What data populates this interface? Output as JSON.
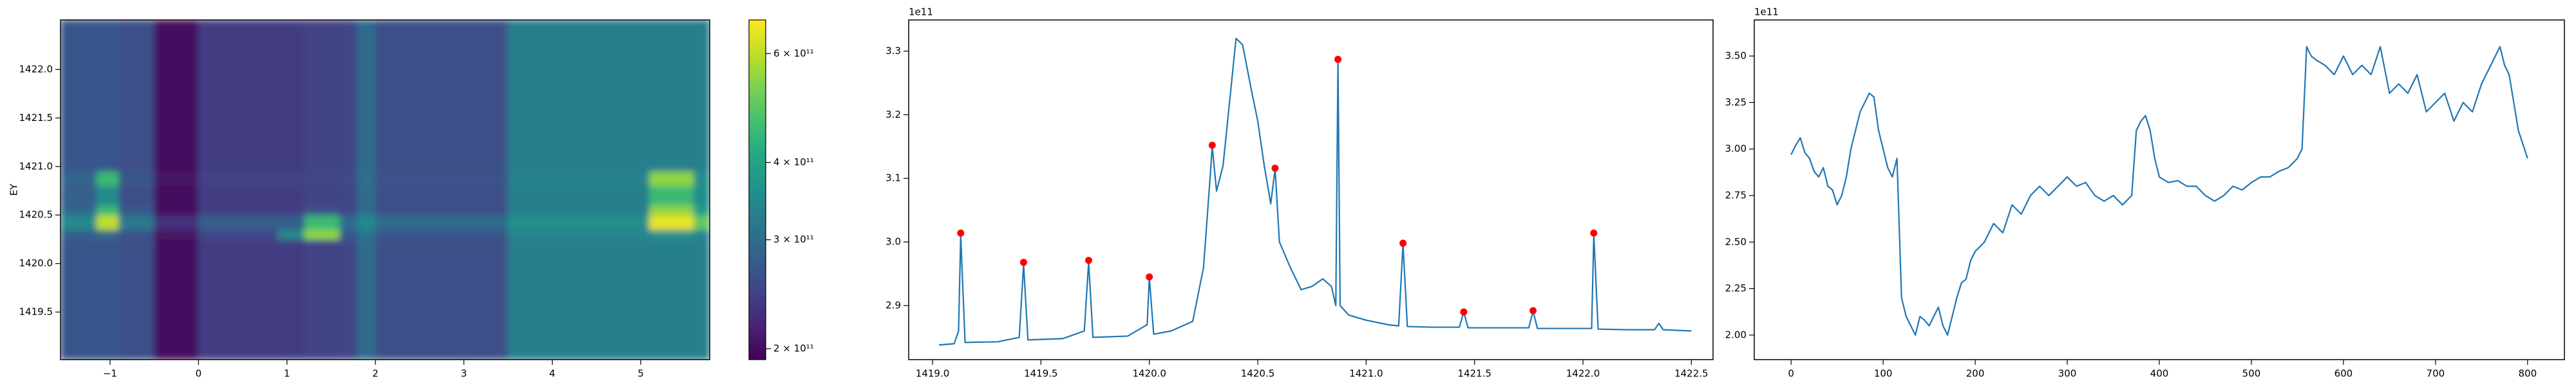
{
  "chart_data": [
    {
      "type": "heatmap",
      "ylabel": "EY",
      "cmap": "viridis",
      "colorbar_log": true,
      "xlim": [
        -1.56,
        5.78
      ],
      "ylim": [
        1419.01,
        1422.51
      ],
      "xticks": [
        {
          "value": -1,
          "label": "−1"
        },
        0,
        1,
        2,
        3,
        4,
        5
      ],
      "yticks": [
        1419.5,
        {
          "value": 1420.0,
          "label": "1420.0"
        },
        1420.5,
        {
          "value": 1421.0,
          "label": "1421.0"
        },
        1421.5,
        {
          "value": 1422.0,
          "label": "1422.0"
        }
      ],
      "x_edges": [
        -1.56,
        -1.15,
        -0.9,
        -0.5,
        0,
        0.9,
        1.2,
        1.6,
        1.8,
        2.0,
        3.5,
        5.1,
        5.6,
        5.78
      ],
      "y_edges": [
        1419.01,
        1420.25,
        1420.35,
        1420.5,
        1420.6,
        1420.8,
        1420.95,
        1422.51
      ],
      "z": [
        [
          270000000000.0,
          270000000000.0,
          260000000000.0,
          200000000000.0,
          240000000000.0,
          240000000000.0,
          245000000000.0,
          250000000000.0,
          300000000000.0,
          260000000000.0,
          330000000000.0,
          330000000000.0,
          330000000000.0
        ],
        [
          280000000000.0,
          290000000000.0,
          265000000000.0,
          205000000000.0,
          250000000000.0,
          350000000000.0,
          550000000000.0,
          270000000000.0,
          310000000000.0,
          270000000000.0,
          340000000000.0,
          360000000000.0,
          340000000000.0
        ],
        [
          350000000000.0,
          600000000000.0,
          320000000000.0,
          230000000000.0,
          280000000000.0,
          280000000000.0,
          450000000000.0,
          300000000000.0,
          350000000000.0,
          300000000000.0,
          360000000000.0,
          650000000000.0,
          500000000000.0
        ],
        [
          290000000000.0,
          450000000000.0,
          270000000000.0,
          200000000000.0,
          240000000000.0,
          240000000000.0,
          260000000000.0,
          250000000000.0,
          300000000000.0,
          260000000000.0,
          330000000000.0,
          550000000000.0,
          380000000000.0
        ],
        [
          280000000000.0,
          350000000000.0,
          260000000000.0,
          200000000000.0,
          240000000000.0,
          240000000000.0,
          245000000000.0,
          250000000000.0,
          300000000000.0,
          260000000000.0,
          330000000000.0,
          450000000000.0,
          350000000000.0
        ],
        [
          290000000000.0,
          450000000000.0,
          270000000000.0,
          205000000000.0,
          245000000000.0,
          245000000000.0,
          250000000000.0,
          255000000000.0,
          305000000000.0,
          265000000000.0,
          335000000000.0,
          550000000000.0,
          360000000000.0
        ],
        [
          270000000000.0,
          270000000000.0,
          260000000000.0,
          200000000000.0,
          240000000000.0,
          240000000000.0,
          245000000000.0,
          250000000000.0,
          300000000000.0,
          260000000000.0,
          330000000000.0,
          330000000000.0,
          330000000000.0
        ]
      ],
      "clim": [
        192000000000.0,
        680000000000.0
      ],
      "colorbar_ticks": [
        {
          "value": 200000000000.0,
          "label": "2 × 10¹¹"
        },
        {
          "value": 300000000000.0,
          "label": "3 × 10¹¹"
        },
        {
          "value": 400000000000.0,
          "label": "4 × 10¹¹"
        },
        {
          "value": 600000000000.0,
          "label": "6 × 10¹¹"
        }
      ]
    },
    {
      "type": "line",
      "offset_text": "1e11",
      "color": "#1f77b4",
      "xlim": [
        1418.89,
        1422.6
      ],
      "ylim": [
        2.815,
        3.349
      ],
      "xticks": [
        {
          "value": 1419.0,
          "label": "1419.0"
        },
        {
          "value": 1419.5,
          "label": "1419.5"
        },
        {
          "value": 1420.0,
          "label": "1420.0"
        },
        {
          "value": 1420.5,
          "label": "1420.5"
        },
        {
          "value": 1421.0,
          "label": "1421.0"
        },
        {
          "value": 1421.5,
          "label": "1421.5"
        },
        {
          "value": 1422.0,
          "label": "1422.0"
        },
        {
          "value": 1422.5,
          "label": "1422.5"
        }
      ],
      "yticks": [
        2.9,
        {
          "value": 3.0,
          "label": "3.0"
        },
        3.1,
        3.2,
        3.3
      ],
      "x": [
        1419.03,
        1419.1,
        1419.12,
        1419.13,
        1419.15,
        1419.3,
        1419.4,
        1419.42,
        1419.44,
        1419.6,
        1419.7,
        1419.72,
        1419.74,
        1419.9,
        1419.99,
        1420.0,
        1420.02,
        1420.1,
        1420.2,
        1420.25,
        1420.28,
        1420.29,
        1420.31,
        1420.34,
        1420.37,
        1420.4,
        1420.43,
        1420.47,
        1420.5,
        1420.53,
        1420.56,
        1420.58,
        1420.6,
        1420.65,
        1420.7,
        1420.75,
        1420.8,
        1420.84,
        1420.86,
        1420.87,
        1420.88,
        1420.92,
        1421.0,
        1421.1,
        1421.15,
        1421.17,
        1421.19,
        1421.3,
        1421.43,
        1421.45,
        1421.47,
        1421.6,
        1421.75,
        1421.77,
        1421.79,
        1421.95,
        1422.04,
        1422.05,
        1422.07,
        1422.2,
        1422.33,
        1422.35,
        1422.37,
        1422.5
      ],
      "values": [
        2.838,
        2.84,
        2.86,
        3.01,
        2.842,
        2.843,
        2.85,
        2.965,
        2.846,
        2.848,
        2.86,
        2.968,
        2.85,
        2.852,
        2.87,
        2.944,
        2.855,
        2.86,
        2.875,
        2.96,
        3.1,
        3.15,
        3.08,
        3.12,
        3.22,
        3.32,
        3.31,
        3.24,
        3.19,
        3.12,
        3.06,
        3.115,
        3.0,
        2.96,
        2.925,
        2.93,
        2.942,
        2.93,
        2.9,
        3.285,
        2.9,
        2.885,
        2.877,
        2.87,
        2.868,
        2.997,
        2.867,
        2.866,
        2.866,
        2.89,
        2.865,
        2.865,
        2.865,
        2.891,
        2.864,
        2.864,
        2.864,
        3.012,
        2.863,
        2.862,
        2.862,
        2.872,
        2.862,
        2.86
      ],
      "markers": {
        "color": "#ff0000",
        "x": [
          1419.13,
          1419.42,
          1419.72,
          1420.0,
          1420.29,
          1420.58,
          1420.87,
          1421.17,
          1421.45,
          1421.77,
          1422.05
        ],
        "values": [
          3.014,
          2.968,
          2.971,
          2.945,
          3.152,
          3.116,
          3.287,
          2.998,
          2.89,
          2.892,
          3.014
        ]
      }
    },
    {
      "type": "line",
      "offset_text": "1e11",
      "color": "#1f77b4",
      "xlim": [
        -40,
        840
      ],
      "ylim": [
        1.868,
        3.694
      ],
      "xticks": [
        0,
        100,
        200,
        300,
        400,
        500,
        600,
        700,
        800
      ],
      "yticks": [
        {
          "value": 2.0,
          "label": "2.00"
        },
        {
          "value": 2.25,
          "label": "2.25"
        },
        {
          "value": 2.5,
          "label": "2.50"
        },
        {
          "value": 2.75,
          "label": "2.75"
        },
        {
          "value": 3.0,
          "label": "3.00"
        },
        {
          "value": 3.25,
          "label": "3.25"
        },
        {
          "value": 3.5,
          "label": "3.50"
        }
      ],
      "x": [
        0,
        5,
        10,
        15,
        20,
        25,
        30,
        35,
        40,
        45,
        50,
        55,
        60,
        65,
        70,
        75,
        80,
        85,
        90,
        95,
        100,
        105,
        110,
        115,
        120,
        125,
        130,
        135,
        140,
        145,
        150,
        155,
        160,
        165,
        170,
        175,
        180,
        185,
        190,
        195,
        200,
        210,
        220,
        230,
        240,
        250,
        260,
        270,
        280,
        290,
        300,
        310,
        320,
        330,
        340,
        350,
        360,
        370,
        375,
        380,
        385,
        390,
        395,
        400,
        410,
        420,
        430,
        440,
        450,
        460,
        470,
        480,
        490,
        500,
        510,
        520,
        530,
        540,
        550,
        555,
        560,
        565,
        570,
        580,
        590,
        600,
        610,
        620,
        630,
        640,
        650,
        660,
        670,
        680,
        690,
        700,
        710,
        720,
        730,
        740,
        750,
        760,
        765,
        770,
        775,
        780,
        790,
        800
      ],
      "values": [
        2.97,
        3.02,
        3.06,
        2.98,
        2.95,
        2.88,
        2.85,
        2.9,
        2.8,
        2.78,
        2.7,
        2.75,
        2.85,
        3.0,
        3.1,
        3.2,
        3.25,
        3.3,
        3.28,
        3.1,
        3.0,
        2.9,
        2.85,
        2.95,
        2.2,
        2.1,
        2.05,
        2.0,
        2.1,
        2.08,
        2.05,
        2.1,
        2.15,
        2.05,
        2.0,
        2.1,
        2.2,
        2.28,
        2.3,
        2.4,
        2.45,
        2.5,
        2.6,
        2.55,
        2.7,
        2.65,
        2.75,
        2.8,
        2.75,
        2.8,
        2.85,
        2.8,
        2.82,
        2.75,
        2.72,
        2.75,
        2.7,
        2.75,
        3.1,
        3.15,
        3.18,
        3.1,
        2.95,
        2.85,
        2.82,
        2.83,
        2.8,
        2.8,
        2.75,
        2.72,
        2.75,
        2.8,
        2.78,
        2.82,
        2.85,
        2.85,
        2.88,
        2.9,
        2.95,
        3.0,
        3.55,
        3.5,
        3.48,
        3.45,
        3.4,
        3.5,
        3.4,
        3.45,
        3.4,
        3.55,
        3.3,
        3.35,
        3.3,
        3.4,
        3.2,
        3.25,
        3.3,
        3.15,
        3.25,
        3.2,
        3.35,
        3.45,
        3.5,
        3.55,
        3.45,
        3.4,
        3.1,
        2.95
      ]
    }
  ]
}
